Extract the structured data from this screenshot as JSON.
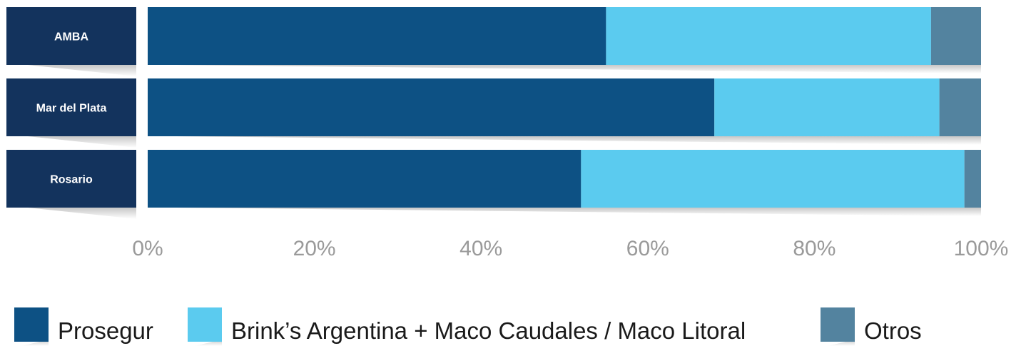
{
  "chart_data": {
    "type": "bar",
    "orientation": "horizontal",
    "stacked": true,
    "normalized": true,
    "categories": [
      "AMBA",
      "Mar del Plata",
      "Rosario"
    ],
    "series": [
      {
        "name": "Prosegur",
        "values": [
          55,
          68,
          52
        ],
        "color": "#0d5184"
      },
      {
        "name": "Brink’s Argentina + Maco Caudales / Maco Litoral",
        "values": [
          39,
          27,
          46
        ],
        "color": "#5bcbef"
      },
      {
        "name": "Otros",
        "values": [
          6,
          5,
          2
        ],
        "color": "#53839f"
      }
    ],
    "xticks": [
      "0%",
      "20%",
      "40%",
      "60%",
      "80%",
      "100%"
    ],
    "xlim": [
      0,
      100
    ],
    "grid": false,
    "legend_position": "bottom",
    "label_box_color": "#13335d"
  }
}
